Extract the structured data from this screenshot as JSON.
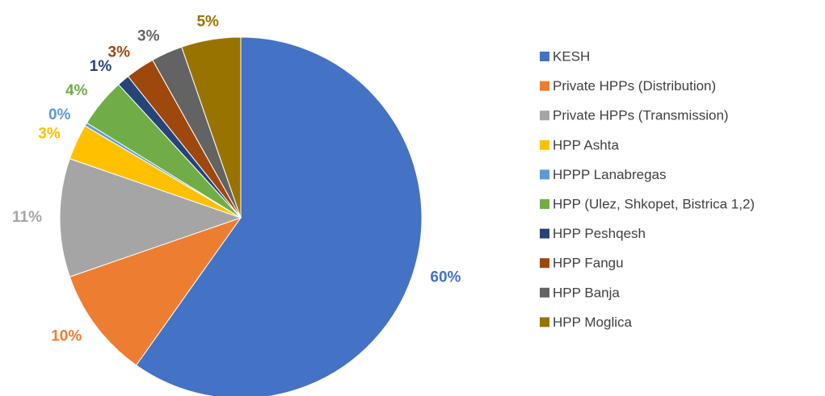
{
  "chart_data": {
    "type": "pie",
    "categories": [
      "KESH",
      "Private HPPs (Distribution)",
      "Private HPPs (Transmission)",
      "HPP Ashta",
      "HPPP Lanabregas",
      "HPP (Ulez, Shkopet, Bistrica 1,2)",
      "HPP Peshqesh",
      "HPP Fangu",
      "HPP Banja",
      "HPP Moglica"
    ],
    "values": [
      59.8,
      9.9,
      10.6,
      3.2,
      0.3,
      4.4,
      1.1,
      2.6,
      2.8,
      5.3
    ],
    "value_labels": [
      "60%",
      "10%",
      "11%",
      "3%",
      "0%",
      "4%",
      "1%",
      "3%",
      "3%",
      "5%"
    ],
    "colors": [
      "#4472c4",
      "#ed7d31",
      "#a5a5a5",
      "#ffc000",
      "#5b9bd5",
      "#70ad47",
      "#264478",
      "#9e480e",
      "#636363",
      "#997300"
    ],
    "legend": "right"
  }
}
